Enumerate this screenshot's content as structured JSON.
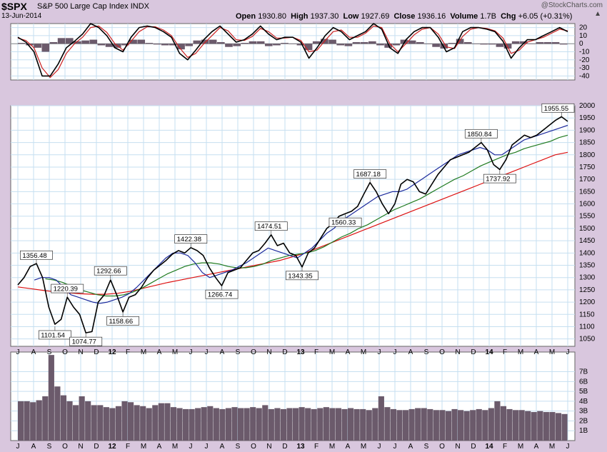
{
  "header": {
    "symbol": "$SPX",
    "name": "S&P 500 Large Cap Index",
    "exchange": "INDX",
    "date": "13-Jun-2014",
    "watermark": "@StockCharts.com",
    "collapse_glyph": "▲",
    "ohlc": {
      "open_label": "Open",
      "open": "1930.80",
      "high_label": "High",
      "high": "1937.30",
      "low_label": "Low",
      "low": "1927.69",
      "close_label": "Close",
      "close": "1936.16",
      "volume_label": "Volume",
      "volume": "1.7B",
      "chg_label": "Chg",
      "chg": "+6.05 (+0.31%)"
    }
  },
  "colors": {
    "background": "#d9c7de",
    "panel": "#ffffff",
    "grid": "#c6dff0",
    "price": "#000000",
    "ma_short": "#1c2a9c",
    "ma_mid": "#1f7a1f",
    "ma_long": "#dd1111",
    "histogram": "#6b5a6b",
    "indicator_signal": "#cc2222",
    "volume": "#6b5a6b"
  },
  "chart_data": [
    {
      "type": "line",
      "panel": "indicator",
      "ylim": [
        -45,
        25
      ],
      "yticks": [
        20,
        10,
        0,
        -10,
        -20,
        -30,
        -40
      ],
      "series": [
        {
          "values": [
            8,
            2,
            -10,
            -40,
            -40,
            -25,
            -5,
            3,
            12,
            25,
            20,
            10,
            -5,
            -10,
            8,
            20,
            22,
            20,
            15,
            8,
            -12,
            -20,
            -8,
            5,
            15,
            22,
            12,
            2,
            5,
            12,
            22,
            12,
            5,
            8,
            8,
            2,
            -18,
            -5,
            10,
            20,
            15,
            5,
            10,
            15,
            25,
            18,
            -5,
            -12,
            5,
            15,
            20,
            20,
            8,
            -10,
            -5,
            15,
            20,
            20,
            18,
            15,
            3,
            -18,
            -5,
            5,
            5,
            10,
            15,
            20,
            15
          ]
        },
        {
          "values": [
            7,
            4,
            -5,
            -30,
            -42,
            -32,
            -12,
            0,
            8,
            20,
            22,
            14,
            0,
            -8,
            3,
            15,
            21,
            21,
            17,
            10,
            -5,
            -17,
            -12,
            0,
            10,
            20,
            16,
            5,
            4,
            9,
            19,
            15,
            7,
            7,
            8,
            4,
            -10,
            -8,
            4,
            15,
            17,
            8,
            8,
            13,
            22,
            20,
            0,
            -10,
            0,
            11,
            18,
            20,
            12,
            -4,
            -6,
            9,
            18,
            20,
            19,
            16,
            7,
            -12,
            -8,
            2,
            5,
            8,
            13,
            18,
            16
          ]
        }
      ],
      "histogram": [
        1,
        -2,
        -5,
        -10,
        2,
        7,
        7,
        3,
        4,
        5,
        -2,
        -4,
        -5,
        -2,
        5,
        5,
        1,
        -1,
        -2,
        -2,
        -7,
        -3,
        4,
        5,
        5,
        2,
        -4,
        -3,
        1,
        3,
        3,
        -3,
        -2,
        1,
        0,
        -2,
        -8,
        3,
        6,
        5,
        -2,
        -3,
        2,
        2,
        3,
        -2,
        -5,
        -2,
        5,
        4,
        2,
        0,
        -4,
        -6,
        1,
        6,
        2,
        0,
        -1,
        -1,
        -4,
        -6,
        3,
        3,
        0,
        2,
        2,
        2,
        -1
      ]
    },
    {
      "type": "line",
      "panel": "price",
      "ylim": [
        1020,
        2000
      ],
      "yticks": [
        1050,
        1100,
        1150,
        1200,
        1250,
        1300,
        1350,
        1400,
        1450,
        1500,
        1550,
        1600,
        1650,
        1700,
        1750,
        1800,
        1850,
        1900,
        1950,
        2000
      ],
      "x_ticks": [
        "J",
        "A",
        "S",
        "O",
        "N",
        "D",
        "12",
        "F",
        "M",
        "A",
        "M",
        "J",
        "J",
        "A",
        "S",
        "O",
        "N",
        "D",
        "13",
        "F",
        "M",
        "A",
        "M",
        "J",
        "J",
        "A",
        "S",
        "O",
        "N",
        "D",
        "14",
        "F",
        "M",
        "A",
        "M",
        "J"
      ],
      "series": [
        {
          "values": [
            1270,
            1300,
            1345,
            1357,
            1300,
            1180,
            1110,
            1130,
            1220,
            1180,
            1150,
            1075,
            1080,
            1200,
            1230,
            1290,
            1230,
            1160,
            1220,
            1230,
            1260,
            1300,
            1330,
            1350,
            1370,
            1395,
            1410,
            1400,
            1422,
            1410,
            1390,
            1340,
            1300,
            1267,
            1320,
            1330,
            1340,
            1370,
            1400,
            1410,
            1440,
            1474,
            1430,
            1440,
            1400,
            1390,
            1343,
            1400,
            1420,
            1460,
            1500,
            1520,
            1550,
            1560,
            1570,
            1590,
            1640,
            1687,
            1650,
            1600,
            1560,
            1600,
            1680,
            1700,
            1690,
            1650,
            1640,
            1680,
            1720,
            1750,
            1780,
            1790,
            1800,
            1810,
            1830,
            1850,
            1820,
            1760,
            1740,
            1780,
            1840,
            1860,
            1880,
            1870,
            1880,
            1900,
            1920,
            1940,
            1955,
            1936
          ]
        },
        {
          "values": [
            1290,
            1300,
            1300,
            1290,
            1260,
            1230,
            1220,
            1210,
            1200,
            1195,
            1200,
            1210,
            1220,
            1235,
            1260,
            1290,
            1320,
            1350,
            1380,
            1400,
            1400,
            1390,
            1360,
            1320,
            1300,
            1310,
            1320,
            1330,
            1345,
            1360,
            1380,
            1400,
            1420,
            1410,
            1400,
            1390,
            1380,
            1400,
            1420,
            1450,
            1480,
            1500,
            1530,
            1550,
            1570,
            1590,
            1610,
            1630,
            1640,
            1650,
            1650,
            1660,
            1680,
            1700,
            1720,
            1740,
            1760,
            1780,
            1800,
            1810,
            1820,
            1830,
            1820,
            1800,
            1800,
            1820,
            1840,
            1860,
            1870,
            1880,
            1890,
            1900,
            1910,
            1920
          ]
        },
        {
          "values": [
            1295,
            1290,
            1280,
            1265,
            1250,
            1240,
            1230,
            1225,
            1225,
            1230,
            1240,
            1255,
            1275,
            1295,
            1315,
            1330,
            1345,
            1355,
            1360,
            1360,
            1355,
            1345,
            1340,
            1340,
            1345,
            1355,
            1370,
            1380,
            1390,
            1395,
            1400,
            1410,
            1425,
            1445,
            1465,
            1480,
            1500,
            1515,
            1535,
            1555,
            1575,
            1590,
            1605,
            1620,
            1640,
            1660,
            1680,
            1700,
            1715,
            1735,
            1755,
            1770,
            1785,
            1800,
            1810,
            1825,
            1835,
            1845,
            1855,
            1870,
            1880
          ]
        },
        {
          "values": [
            1262,
            1255,
            1248,
            1242,
            1238,
            1234,
            1232,
            1232,
            1236,
            1244,
            1256,
            1268,
            1280,
            1290,
            1300,
            1310,
            1320,
            1330,
            1340,
            1350,
            1360,
            1370,
            1385,
            1400,
            1420,
            1440,
            1460,
            1480,
            1500,
            1520,
            1540,
            1560,
            1580,
            1600,
            1620,
            1640,
            1660,
            1680,
            1700,
            1720,
            1740,
            1760,
            1780,
            1800,
            1810
          ]
        }
      ],
      "annotations": [
        "1356.48",
        "1101.54",
        "1220.39",
        "1074.77",
        "1292.66",
        "1158.66",
        "1422.38",
        "1266.74",
        "1474.51",
        "1343.35",
        "1687.18",
        "1560.33",
        "1850.84",
        "1737.92",
        "1955.55"
      ],
      "annotation_values": [
        1356.48,
        1101.54,
        1220.39,
        1074.77,
        1292.66,
        1158.66,
        1422.38,
        1266.74,
        1474.51,
        1343.35,
        1687.18,
        1560.33,
        1850.84,
        1737.92,
        1955.55
      ]
    },
    {
      "type": "bar",
      "panel": "volume",
      "ylim": [
        0,
        9
      ],
      "yticks": [
        "1B",
        "2B",
        "3B",
        "4B",
        "5B",
        "6B",
        "7B"
      ],
      "x_ticks": [
        "J",
        "A",
        "S",
        "O",
        "N",
        "D",
        "12",
        "F",
        "M",
        "A",
        "M",
        "J",
        "J",
        "A",
        "S",
        "O",
        "N",
        "D",
        "13",
        "F",
        "M",
        "A",
        "M",
        "J",
        "J",
        "A",
        "S",
        "O",
        "N",
        "D",
        "14",
        "F",
        "M",
        "A",
        "M",
        "J"
      ],
      "values": [
        4,
        4,
        3.9,
        4.1,
        4.5,
        8.7,
        5.5,
        4.6,
        4,
        3.6,
        4.5,
        4,
        3.6,
        3.6,
        3.4,
        3.3,
        3.5,
        4,
        3.9,
        3.6,
        3.5,
        3.3,
        3.6,
        3.8,
        3.8,
        3.4,
        3.3,
        3.2,
        3.2,
        3.3,
        3.4,
        3.5,
        3.3,
        3.2,
        3.3,
        3.4,
        3.3,
        3.3,
        3.4,
        3.3,
        3.6,
        3.2,
        3.3,
        3.2,
        3.3,
        3.3,
        3.4,
        3.3,
        3.2,
        3.3,
        3.4,
        3.3,
        3.3,
        3.2,
        3.3,
        3.2,
        3.2,
        3.1,
        3.3,
        4.5,
        3.4,
        3.2,
        3.1,
        3.1,
        3.2,
        3.3,
        3.3,
        3.2,
        3.1,
        3.1,
        3,
        3.2,
        3.1,
        3,
        3.1,
        3.2,
        3.1,
        3.3,
        4,
        3.5,
        3.2,
        3.1,
        3.1,
        3,
        2.9,
        3,
        2.9,
        2.9,
        2.8,
        2.7
      ]
    }
  ]
}
